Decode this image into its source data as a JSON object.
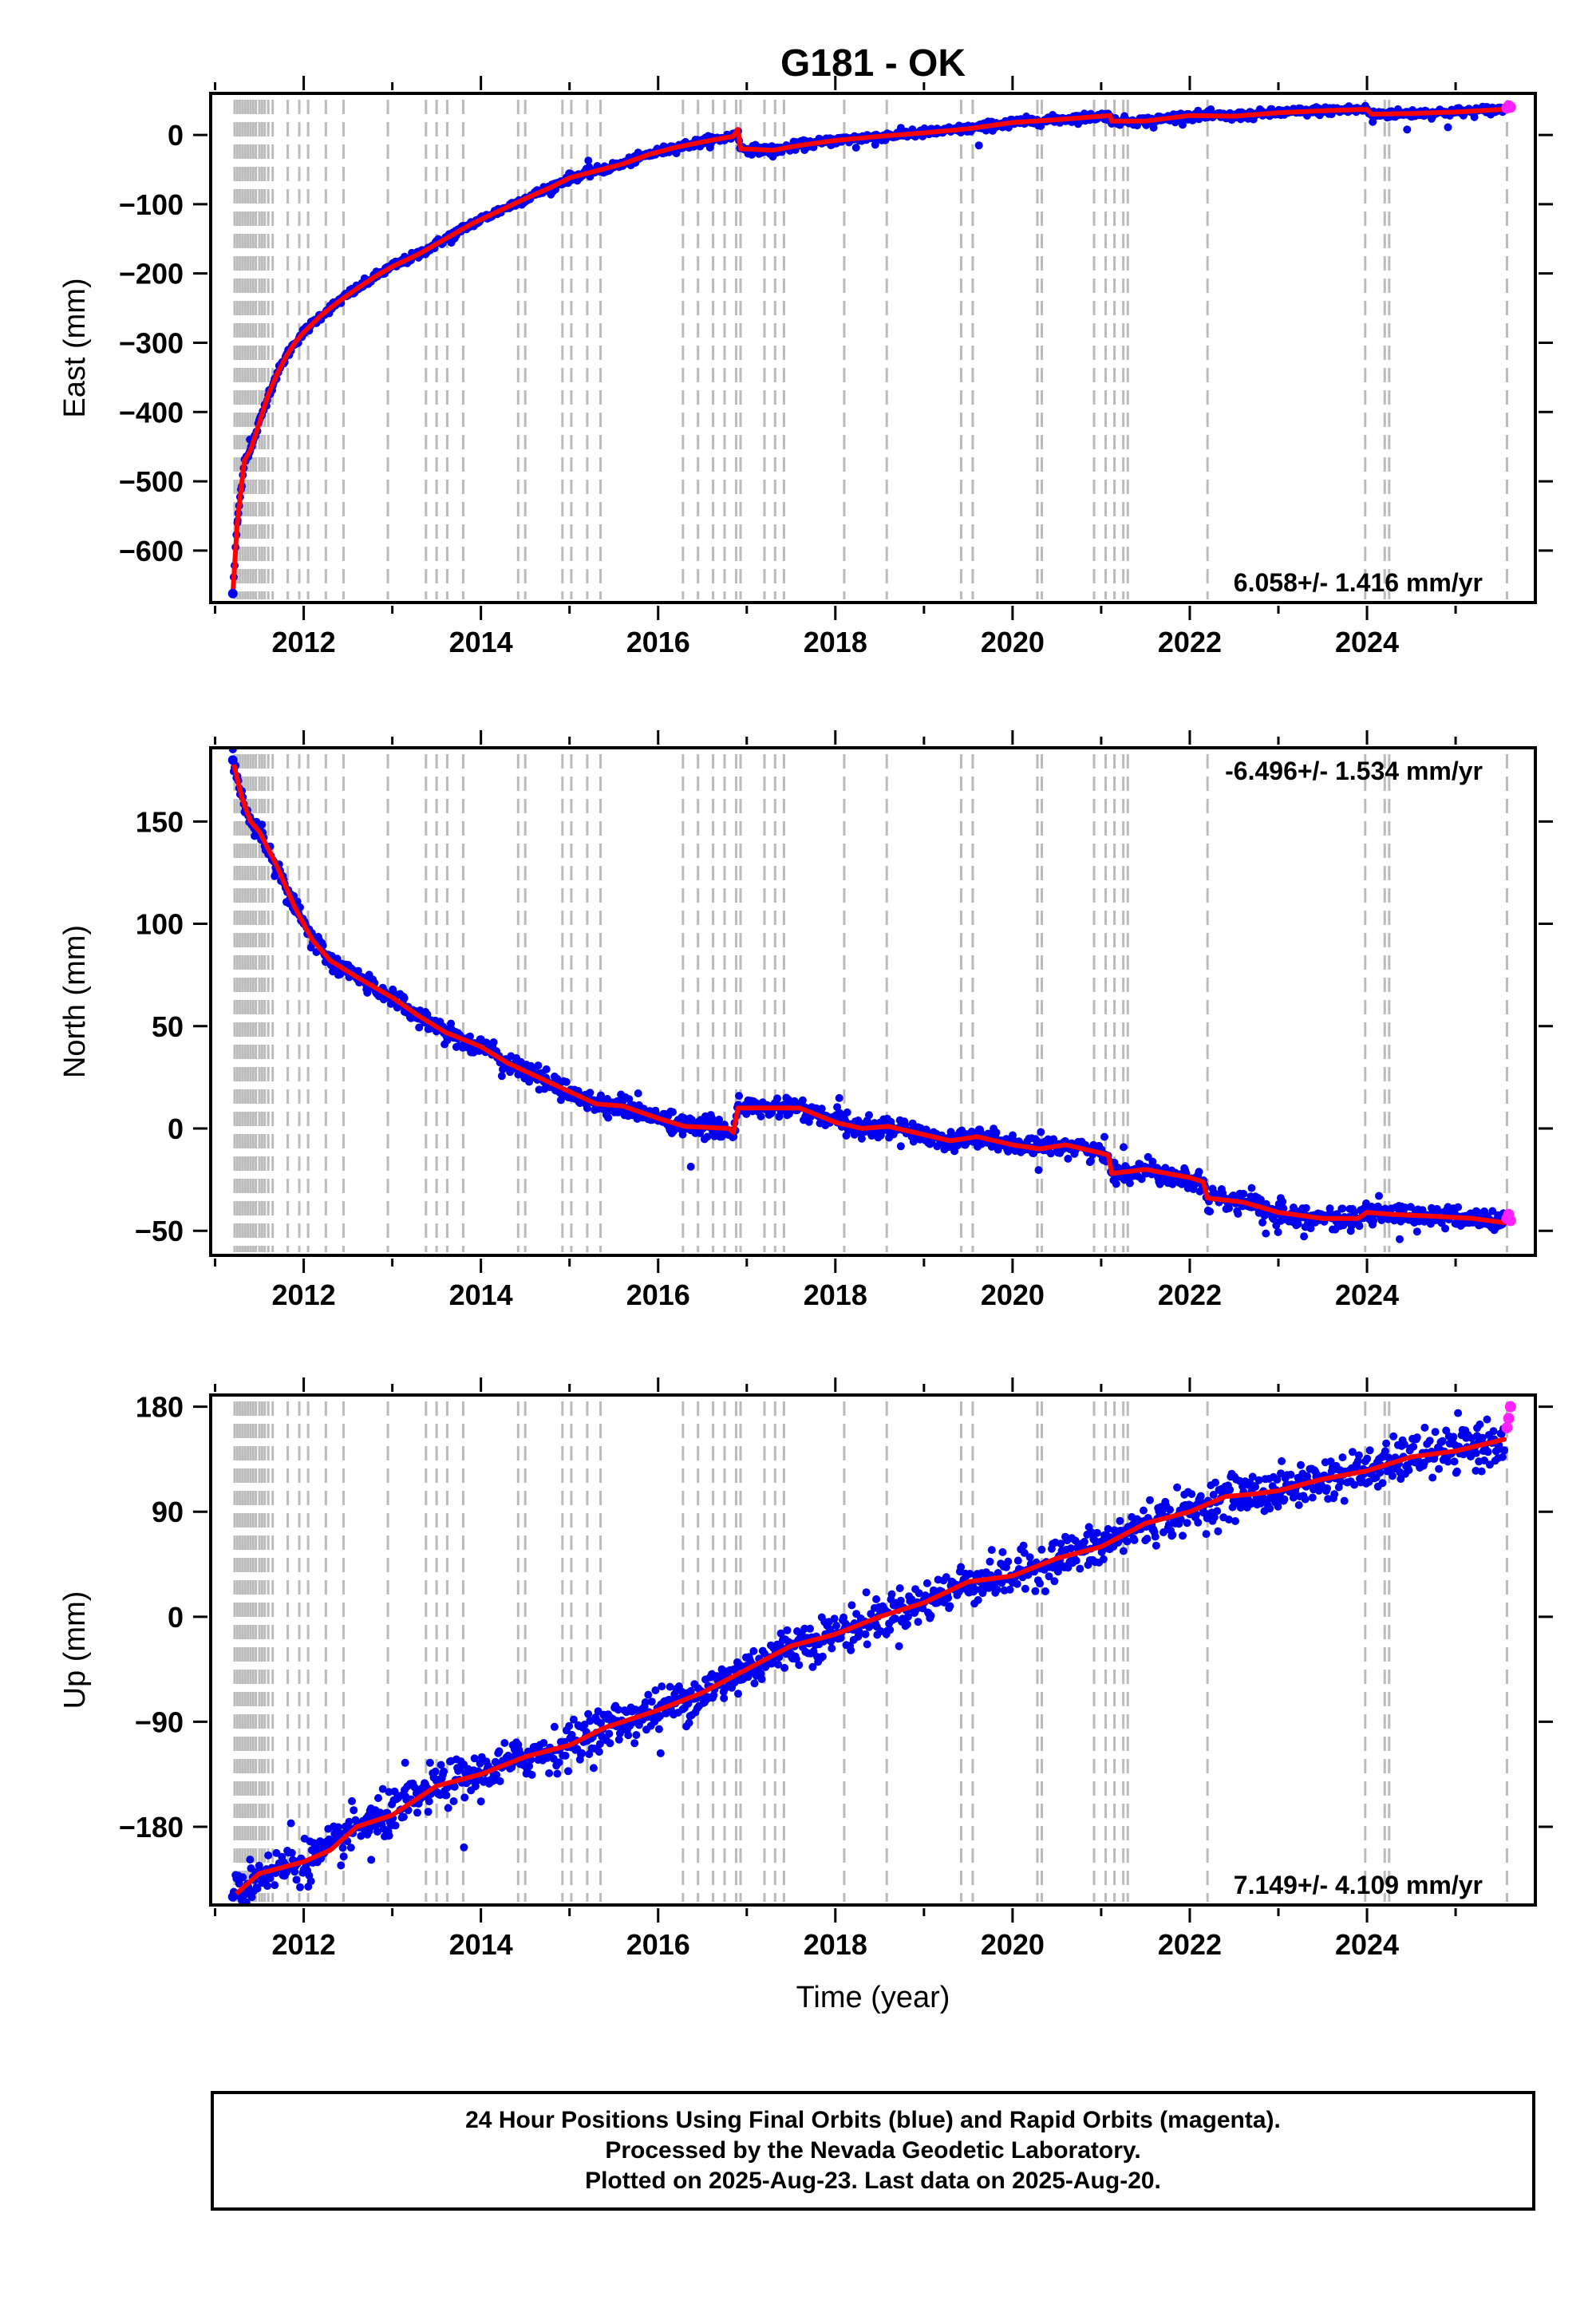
{
  "title": "G181 - OK",
  "xlabel": "Time (year)",
  "colors": {
    "final_orbits": "#0000ee",
    "rapid_orbits": "#ff22ff",
    "model": "#ff0000",
    "event_lines": "#bbbbbb"
  },
  "info": {
    "line1": "24 Hour Positions Using Final Orbits (blue) and Rapid Orbits (magenta).",
    "line2": "Processed by the Nevada Geodetic Laboratory.",
    "line3": "Plotted on 2025-Aug-23. Last data on 2025-Aug-20."
  },
  "chart_data": [
    {
      "type": "scatter",
      "component": "East",
      "ylabel": "East (mm)",
      "rate_label": "6.058+/- 1.416 mm/yr",
      "rate_position": "bottom-right",
      "xlim": [
        2010.95,
        2025.9
      ],
      "ylim": [
        -675,
        60
      ],
      "xticks": [
        2012,
        2014,
        2016,
        2018,
        2020,
        2022,
        2024
      ],
      "yticks": [
        0,
        -100,
        -200,
        -300,
        -400,
        -500,
        -600
      ],
      "ytick_labels": [
        "0",
        "−100",
        "−200",
        "−300",
        "−400",
        "−500",
        "−600"
      ],
      "trend": [
        [
          2011.2,
          -662
        ],
        [
          2011.25,
          -560
        ],
        [
          2011.33,
          -470
        ],
        [
          2011.4,
          -455
        ],
        [
          2011.5,
          -415
        ],
        [
          2011.6,
          -375
        ],
        [
          2011.7,
          -345
        ],
        [
          2011.8,
          -320
        ],
        [
          2011.9,
          -300
        ],
        [
          2012.0,
          -285
        ],
        [
          2012.2,
          -260
        ],
        [
          2012.4,
          -240
        ],
        [
          2012.6,
          -222
        ],
        [
          2012.8,
          -205
        ],
        [
          2013.0,
          -190
        ],
        [
          2013.3,
          -172
        ],
        [
          2013.6,
          -150
        ],
        [
          2013.9,
          -128
        ],
        [
          2014.2,
          -110
        ],
        [
          2014.5,
          -92
        ],
        [
          2014.8,
          -75
        ],
        [
          2015.0,
          -62
        ],
        [
          2015.3,
          -52
        ],
        [
          2015.6,
          -42
        ],
        [
          2015.9,
          -28
        ],
        [
          2016.2,
          -18
        ],
        [
          2016.5,
          -10
        ],
        [
          2016.85,
          -2
        ],
        [
          2016.9,
          8
        ],
        [
          2016.93,
          -20
        ],
        [
          2017.3,
          -22
        ],
        [
          2017.6,
          -15
        ],
        [
          2018.0,
          -8
        ],
        [
          2018.5,
          -2
        ],
        [
          2019.0,
          3
        ],
        [
          2019.5,
          9
        ],
        [
          2020.0,
          18
        ],
        [
          2020.5,
          22
        ],
        [
          2021.0,
          27
        ],
        [
          2021.1,
          28
        ],
        [
          2021.12,
          20
        ],
        [
          2021.5,
          20
        ],
        [
          2022.0,
          28
        ],
        [
          2022.5,
          27
        ],
        [
          2023.0,
          32
        ],
        [
          2023.5,
          35
        ],
        [
          2024.0,
          37
        ],
        [
          2024.05,
          30
        ],
        [
          2024.5,
          31
        ],
        [
          2025.0,
          33
        ],
        [
          2025.55,
          37
        ]
      ],
      "scatter_sigma": 3,
      "rapid_points": [
        [
          2025.58,
          39
        ],
        [
          2025.6,
          42
        ],
        [
          2025.62,
          40
        ]
      ]
    },
    {
      "type": "scatter",
      "component": "North",
      "ylabel": "North (mm)",
      "rate_label": "-6.496+/- 1.534 mm/yr",
      "rate_position": "top-right",
      "xlim": [
        2010.95,
        2025.9
      ],
      "ylim": [
        -62,
        186
      ],
      "xticks": [
        2012,
        2014,
        2016,
        2018,
        2020,
        2022,
        2024
      ],
      "yticks": [
        150,
        100,
        50,
        0,
        -50
      ],
      "ytick_labels": [
        "150",
        "100",
        "50",
        "0",
        "−50"
      ],
      "trend": [
        [
          2011.2,
          180
        ],
        [
          2011.3,
          162
        ],
        [
          2011.4,
          150
        ],
        [
          2011.5,
          145
        ],
        [
          2011.7,
          128
        ],
        [
          2011.9,
          108
        ],
        [
          2012.1,
          92
        ],
        [
          2012.3,
          82
        ],
        [
          2012.6,
          74
        ],
        [
          2013.0,
          64
        ],
        [
          2013.3,
          55
        ],
        [
          2013.6,
          47
        ],
        [
          2014.0,
          40
        ],
        [
          2014.3,
          32
        ],
        [
          2014.6,
          26
        ],
        [
          2015.0,
          18
        ],
        [
          2015.3,
          12
        ],
        [
          2015.6,
          11
        ],
        [
          2016.0,
          5
        ],
        [
          2016.3,
          1
        ],
        [
          2016.8,
          0
        ],
        [
          2016.85,
          -2
        ],
        [
          2016.9,
          10
        ],
        [
          2017.2,
          10
        ],
        [
          2017.6,
          10
        ],
        [
          2018.0,
          3
        ],
        [
          2018.3,
          0
        ],
        [
          2018.6,
          1
        ],
        [
          2019.0,
          -3
        ],
        [
          2019.3,
          -6
        ],
        [
          2019.6,
          -4
        ],
        [
          2020.0,
          -8
        ],
        [
          2020.3,
          -10
        ],
        [
          2020.6,
          -8
        ],
        [
          2021.0,
          -12
        ],
        [
          2021.08,
          -13
        ],
        [
          2021.12,
          -22
        ],
        [
          2021.5,
          -20
        ],
        [
          2022.0,
          -24
        ],
        [
          2022.15,
          -26
        ],
        [
          2022.2,
          -34
        ],
        [
          2022.6,
          -36
        ],
        [
          2023.0,
          -41
        ],
        [
          2023.5,
          -44
        ],
        [
          2023.9,
          -44
        ],
        [
          2024.0,
          -41
        ],
        [
          2024.3,
          -42
        ],
        [
          2024.8,
          -43
        ],
        [
          2025.2,
          -44
        ],
        [
          2025.55,
          -46
        ]
      ],
      "scatter_sigma": 2.5,
      "rapid_points": [
        [
          2025.58,
          -44
        ],
        [
          2025.6,
          -42
        ],
        [
          2025.62,
          -45
        ]
      ]
    },
    {
      "type": "scatter",
      "component": "Up",
      "ylabel": "Up (mm)",
      "rate_label": "7.149+/- 4.109 mm/yr",
      "rate_position": "bottom-right",
      "xlim": [
        2010.95,
        2025.9
      ],
      "ylim": [
        -247,
        190
      ],
      "xticks": [
        2012,
        2014,
        2016,
        2018,
        2020,
        2022,
        2024
      ],
      "yticks": [
        180,
        90,
        0,
        -90,
        -180
      ],
      "ytick_labels": [
        "180",
        "90",
        "0",
        "−90",
        "−180"
      ],
      "trend": [
        [
          2011.2,
          -240
        ],
        [
          2011.5,
          -220
        ],
        [
          2012.0,
          -210
        ],
        [
          2012.3,
          -200
        ],
        [
          2012.6,
          -180
        ],
        [
          2013.0,
          -170
        ],
        [
          2013.5,
          -145
        ],
        [
          2014.0,
          -135
        ],
        [
          2014.5,
          -120
        ],
        [
          2015.0,
          -110
        ],
        [
          2015.4,
          -95
        ],
        [
          2016.0,
          -80
        ],
        [
          2016.5,
          -65
        ],
        [
          2017.0,
          -45
        ],
        [
          2017.5,
          -25
        ],
        [
          2018.0,
          -15
        ],
        [
          2018.5,
          0
        ],
        [
          2019.0,
          12
        ],
        [
          2019.5,
          30
        ],
        [
          2020.0,
          35
        ],
        [
          2020.5,
          50
        ],
        [
          2021.0,
          60
        ],
        [
          2021.5,
          80
        ],
        [
          2022.0,
          90
        ],
        [
          2022.4,
          103
        ],
        [
          2022.7,
          105
        ],
        [
          2023.0,
          108
        ],
        [
          2023.5,
          118
        ],
        [
          2024.0,
          125
        ],
        [
          2024.5,
          137
        ],
        [
          2025.0,
          142
        ],
        [
          2025.55,
          152
        ]
      ],
      "scatter_sigma": 9,
      "rapid_points": [
        [
          2025.58,
          162
        ],
        [
          2025.6,
          170
        ],
        [
          2025.62,
          180
        ]
      ]
    }
  ],
  "event_lines": [
    2011.22,
    2011.25,
    2011.28,
    2011.31,
    2011.34,
    2011.37,
    2011.4,
    2011.43,
    2011.46,
    2011.5,
    2011.53,
    2011.56,
    2011.6,
    2011.65,
    2011.82,
    2011.95,
    2012.05,
    2012.25,
    2012.45,
    2012.95,
    2013.38,
    2013.5,
    2013.62,
    2013.8,
    2014.42,
    2014.5,
    2014.92,
    2015.02,
    2015.2,
    2015.35,
    2016.28,
    2016.45,
    2016.62,
    2016.75,
    2016.88,
    2016.93,
    2017.2,
    2017.32,
    2017.42,
    2018.1,
    2018.58,
    2019.42,
    2019.55,
    2020.28,
    2020.33,
    2020.92,
    2021.05,
    2021.15,
    2021.25,
    2021.3,
    2022.2,
    2023.98,
    2024.2,
    2024.25,
    2025.58
  ]
}
